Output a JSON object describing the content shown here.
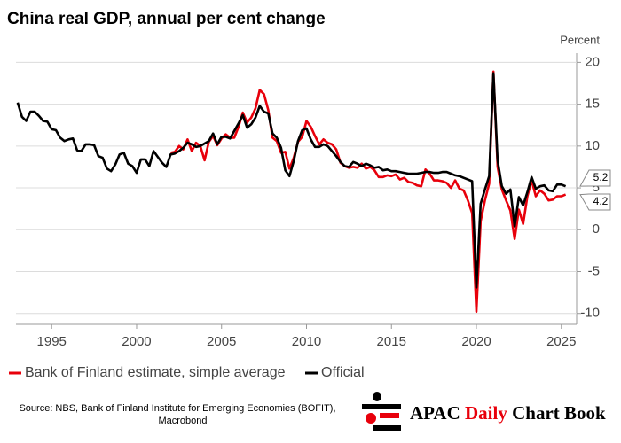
{
  "chart_data": {
    "type": "line",
    "title": "China real GDP, annual per cent change",
    "y_unit_label": "Percent",
    "source": [
      "Source: NBS, Bank of Finland Institute for Emerging Economies (BOFIT),",
      "Macrobond"
    ],
    "brand": [
      "APAC",
      "Daily",
      "Chart Book"
    ],
    "xlim": [
      1992.9,
      2025.9
    ],
    "xticks": [
      1995,
      2000,
      2005,
      2010,
      2015,
      2020,
      2025
    ],
    "ylim": [
      -11.3,
      21.1
    ],
    "yticks": [
      -10,
      -5,
      0,
      5,
      10,
      15,
      20
    ],
    "grid": true,
    "series": [
      {
        "name": "Bank of Finland estimate, simple average",
        "color": "#e8000b",
        "x": [
          2002,
          2002.25,
          2002.5,
          2002.75,
          2003,
          2003.25,
          2003.5,
          2003.75,
          2004,
          2004.25,
          2004.5,
          2004.75,
          2005,
          2005.25,
          2005.5,
          2005.75,
          2006,
          2006.25,
          2006.5,
          2006.75,
          2007,
          2007.25,
          2007.5,
          2007.75,
          2008,
          2008.25,
          2008.5,
          2008.75,
          2009,
          2009.25,
          2009.5,
          2009.75,
          2010,
          2010.25,
          2010.5,
          2010.75,
          2011,
          2011.25,
          2011.5,
          2011.75,
          2012,
          2012.25,
          2012.5,
          2012.75,
          2013,
          2013.25,
          2013.5,
          2013.75,
          2014,
          2014.25,
          2014.5,
          2014.75,
          2015,
          2015.25,
          2015.5,
          2015.75,
          2016,
          2016.25,
          2016.5,
          2016.75,
          2017,
          2017.25,
          2017.5,
          2017.75,
          2018,
          2018.25,
          2018.5,
          2018.75,
          2019,
          2019.25,
          2019.5,
          2019.75,
          2020,
          2020.25,
          2020.5,
          2020.75,
          2021,
          2021.25,
          2021.5,
          2021.75,
          2022,
          2022.25,
          2022.5,
          2022.75,
          2023,
          2023.25,
          2023.5,
          2023.75,
          2024,
          2024.25,
          2024.5,
          2024.75,
          2025,
          2025.25
        ],
        "values": [
          9.2,
          9.3,
          10.0,
          9.6,
          10.8,
          9.4,
          10.4,
          10.0,
          8.3,
          10.5,
          11.2,
          10.1,
          10.9,
          11.4,
          11.0,
          11.0,
          12.3,
          14.0,
          12.8,
          13.4,
          14.5,
          16.7,
          16.2,
          14.3,
          11.0,
          10.6,
          9.2,
          9.3,
          7.3,
          8.6,
          10.5,
          11.1,
          13.0,
          12.3,
          11.2,
          10.2,
          10.8,
          10.4,
          10.2,
          9.6,
          8.0,
          7.6,
          7.4,
          7.5,
          7.4,
          7.9,
          7.3,
          7.5,
          7.1,
          6.3,
          6.3,
          6.5,
          6.4,
          6.6,
          6.0,
          6.2,
          5.7,
          5.6,
          5.3,
          5.2,
          7.2,
          6.7,
          5.9,
          5.9,
          5.8,
          5.6,
          5.0,
          5.9,
          4.9,
          4.7,
          3.5,
          2.0,
          -9.8,
          1.0,
          3.5,
          5.5,
          18.9,
          7.5,
          4.8,
          3.5,
          2.3,
          -1.1,
          2.4,
          0.7,
          4.0,
          5.9,
          4.0,
          4.7,
          4.3,
          3.5,
          3.6,
          4.0,
          4.0,
          4.2
        ]
      },
      {
        "name": "Official",
        "color": "#000000",
        "x": [
          1993,
          1993.25,
          1993.5,
          1993.75,
          1994,
          1994.25,
          1994.5,
          1994.75,
          1995,
          1995.25,
          1995.5,
          1995.75,
          1996,
          1996.25,
          1996.5,
          1996.75,
          1997,
          1997.25,
          1997.5,
          1997.75,
          1998,
          1998.25,
          1998.5,
          1998.75,
          1999,
          1999.25,
          1999.5,
          1999.75,
          2000,
          2000.25,
          2000.5,
          2000.75,
          2001,
          2001.25,
          2001.5,
          2001.75,
          2002,
          2002.25,
          2002.5,
          2002.75,
          2003,
          2003.25,
          2003.5,
          2003.75,
          2004,
          2004.25,
          2004.5,
          2004.75,
          2005,
          2005.25,
          2005.5,
          2005.75,
          2006,
          2006.25,
          2006.5,
          2006.75,
          2007,
          2007.25,
          2007.5,
          2007.75,
          2008,
          2008.25,
          2008.5,
          2008.75,
          2009,
          2009.25,
          2009.5,
          2009.75,
          2010,
          2010.25,
          2010.5,
          2010.75,
          2011,
          2011.25,
          2011.5,
          2011.75,
          2012,
          2012.25,
          2012.5,
          2012.75,
          2013,
          2013.25,
          2013.5,
          2013.75,
          2014,
          2014.25,
          2014.5,
          2014.75,
          2015,
          2015.25,
          2015.5,
          2015.75,
          2016,
          2016.25,
          2016.5,
          2016.75,
          2017,
          2017.25,
          2017.5,
          2017.75,
          2018,
          2018.25,
          2018.5,
          2018.75,
          2019,
          2019.25,
          2019.5,
          2019.75,
          2020,
          2020.25,
          2020.5,
          2020.75,
          2021,
          2021.25,
          2021.5,
          2021.75,
          2022,
          2022.25,
          2022.5,
          2022.75,
          2023,
          2023.25,
          2023.5,
          2023.75,
          2024,
          2024.25,
          2024.5,
          2024.75,
          2025,
          2025.25
        ],
        "values": [
          15.2,
          13.5,
          13.0,
          14.1,
          14.1,
          13.6,
          13.0,
          12.9,
          12.0,
          11.9,
          11.0,
          10.6,
          10.8,
          10.9,
          9.5,
          9.4,
          10.2,
          10.2,
          10.1,
          8.8,
          8.6,
          7.3,
          7.0,
          7.8,
          9.0,
          9.2,
          7.9,
          7.6,
          6.8,
          8.4,
          8.4,
          7.6,
          9.4,
          8.7,
          8.0,
          7.5,
          9.0,
          9.1,
          9.4,
          9.8,
          10.4,
          10.2,
          9.9,
          10.0,
          10.3,
          10.6,
          11.5,
          10.2,
          11.1,
          11.1,
          10.9,
          11.8,
          12.7,
          13.7,
          12.2,
          12.6,
          13.4,
          14.8,
          14.1,
          13.9,
          11.5,
          11.0,
          9.8,
          7.1,
          6.4,
          8.2,
          10.6,
          11.9,
          12.1,
          10.8,
          9.9,
          9.9,
          10.2,
          10.0,
          9.4,
          8.8,
          8.1,
          7.6,
          7.5,
          8.1,
          7.9,
          7.6,
          7.9,
          7.7,
          7.4,
          7.5,
          7.1,
          7.2,
          7.0,
          7.0,
          6.9,
          6.8,
          6.7,
          6.7,
          6.7,
          6.8,
          6.9,
          6.9,
          6.8,
          6.8,
          6.9,
          6.9,
          6.7,
          6.5,
          6.4,
          6.2,
          6.0,
          5.8,
          -6.9,
          3.1,
          4.8,
          6.4,
          18.7,
          8.3,
          5.2,
          4.3,
          4.8,
          0.4,
          3.9,
          2.9,
          4.5,
          6.3,
          4.9,
          5.2,
          5.3,
          4.7,
          4.6,
          5.4,
          5.4,
          5.2
        ]
      }
    ]
  }
}
